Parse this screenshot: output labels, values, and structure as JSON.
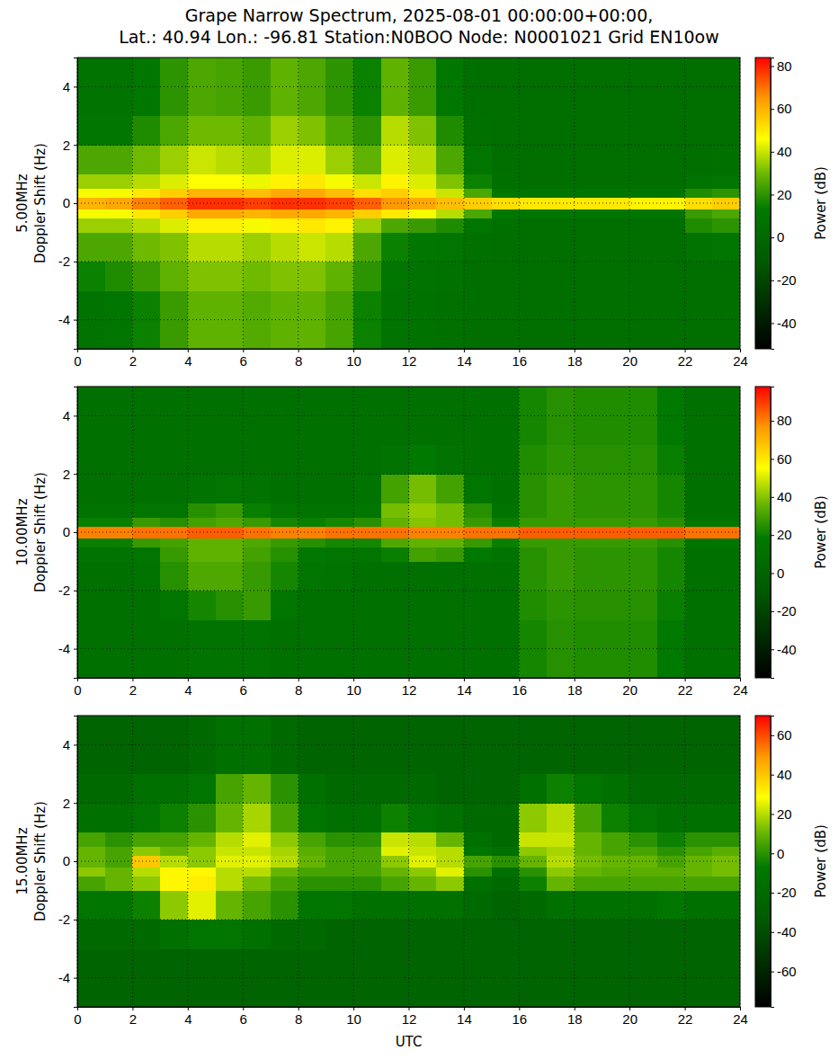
{
  "chart_data": [
    {
      "type": "heatmap",
      "title": "Grape Narrow Spectrum, 2025-08-01 00:00:00+00:00,\nLat.: 40.94 Lon.: -96.81 Station:N0BOO Node: N0001021 Grid EN10ow",
      "ylabel": "5.00MHz\nDoppler Shift (Hz)",
      "xlim": [
        0,
        24
      ],
      "xticks": [
        0,
        2,
        4,
        6,
        8,
        10,
        12,
        14,
        16,
        18,
        20,
        22,
        24
      ],
      "ylim": [
        -5,
        5
      ],
      "yticks": [
        -4,
        -2,
        0,
        2,
        4
      ],
      "grid": true,
      "x_edges": [
        0,
        1,
        2,
        3,
        4,
        5,
        6,
        7,
        8,
        9,
        10,
        11,
        12,
        13,
        14,
        15,
        16,
        17,
        18,
        19,
        20,
        21,
        22,
        23,
        24
      ],
      "y_edges": [
        -5,
        -3,
        -2,
        -1,
        -0.5,
        -0.2,
        0.2,
        0.5,
        1,
        2,
        3,
        5
      ],
      "cells": [
        [
          8,
          10,
          15,
          22,
          28,
          28,
          26,
          28,
          28,
          24,
          15,
          8,
          7,
          6,
          5,
          5,
          5,
          5,
          5,
          5,
          5,
          5,
          5,
          5
        ],
        [
          15,
          18,
          22,
          28,
          32,
          32,
          30,
          32,
          32,
          28,
          20,
          10,
          8,
          7,
          5,
          5,
          5,
          5,
          5,
          5,
          5,
          5,
          5,
          5
        ],
        [
          25,
          25,
          30,
          32,
          38,
          38,
          35,
          38,
          40,
          38,
          25,
          15,
          12,
          10,
          6,
          5,
          5,
          5,
          5,
          5,
          5,
          5,
          8,
          10
        ],
        [
          35,
          35,
          38,
          42,
          48,
          48,
          45,
          48,
          50,
          48,
          35,
          25,
          22,
          18,
          10,
          6,
          5,
          5,
          5,
          5,
          5,
          5,
          18,
          20
        ],
        [
          45,
          45,
          50,
          55,
          62,
          62,
          60,
          62,
          62,
          60,
          55,
          50,
          45,
          38,
          25,
          12,
          10,
          10,
          10,
          10,
          10,
          10,
          22,
          25
        ],
        [
          60,
          62,
          68,
          72,
          78,
          78,
          76,
          78,
          78,
          76,
          72,
          65,
          62,
          58,
          55,
          52,
          50,
          50,
          50,
          50,
          48,
          48,
          52,
          55
        ],
        [
          45,
          45,
          50,
          55,
          60,
          60,
          58,
          62,
          62,
          58,
          52,
          55,
          50,
          40,
          25,
          12,
          10,
          10,
          10,
          10,
          10,
          10,
          18,
          20
        ],
        [
          35,
          35,
          38,
          42,
          46,
          46,
          44,
          48,
          50,
          45,
          40,
          48,
          42,
          32,
          15,
          6,
          5,
          5,
          5,
          5,
          5,
          5,
          8,
          10
        ],
        [
          25,
          25,
          30,
          35,
          40,
          38,
          36,
          42,
          42,
          35,
          28,
          42,
          38,
          25,
          10,
          5,
          5,
          5,
          5,
          5,
          5,
          5,
          5,
          6
        ],
        [
          12,
          12,
          18,
          25,
          30,
          30,
          28,
          35,
          32,
          25,
          20,
          38,
          32,
          18,
          6,
          5,
          5,
          5,
          5,
          5,
          5,
          5,
          5,
          5
        ],
        [
          8,
          8,
          12,
          20,
          25,
          24,
          22,
          28,
          25,
          20,
          15,
          28,
          22,
          12,
          5,
          5,
          5,
          5,
          5,
          5,
          5,
          5,
          5,
          5
        ]
      ],
      "colorbar": {
        "label": "Power (dB)",
        "range": [
          -52,
          84
        ],
        "ticks": [
          -40,
          -20,
          0,
          20,
          40,
          60,
          80
        ]
      }
    },
    {
      "type": "heatmap",
      "ylabel": "10.00MHz\nDoppler Shift (Hz)",
      "xlim": [
        0,
        24
      ],
      "xticks": [
        0,
        2,
        4,
        6,
        8,
        10,
        12,
        14,
        16,
        18,
        20,
        22,
        24
      ],
      "ylim": [
        -5,
        5
      ],
      "yticks": [
        -4,
        -2,
        0,
        2,
        4
      ],
      "grid": true,
      "x_edges": [
        0,
        1,
        2,
        3,
        4,
        5,
        6,
        7,
        8,
        9,
        10,
        11,
        12,
        13,
        14,
        15,
        16,
        17,
        18,
        19,
        20,
        21,
        22,
        23,
        24
      ],
      "y_edges": [
        -5,
        -3,
        -2,
        -1,
        -0.5,
        -0.2,
        0.2,
        0.5,
        1,
        2,
        3,
        5
      ],
      "cells": [
        [
          10,
          10,
          10,
          10,
          12,
          12,
          12,
          10,
          10,
          10,
          10,
          10,
          10,
          10,
          10,
          10,
          22,
          25,
          24,
          24,
          24,
          18,
          10,
          10
        ],
        [
          10,
          10,
          10,
          15,
          22,
          25,
          28,
          15,
          10,
          10,
          10,
          10,
          10,
          10,
          10,
          10,
          24,
          26,
          25,
          25,
          25,
          20,
          10,
          10
        ],
        [
          10,
          10,
          12,
          25,
          32,
          32,
          28,
          22,
          15,
          12,
          10,
          10,
          10,
          10,
          10,
          10,
          25,
          28,
          26,
          26,
          26,
          22,
          10,
          10
        ],
        [
          12,
          12,
          15,
          28,
          35,
          35,
          30,
          25,
          18,
          15,
          15,
          20,
          30,
          28,
          18,
          12,
          25,
          28,
          26,
          26,
          26,
          22,
          10,
          10
        ],
        [
          20,
          20,
          28,
          30,
          35,
          35,
          32,
          28,
          25,
          22,
          22,
          32,
          35,
          35,
          28,
          20,
          28,
          28,
          28,
          28,
          28,
          25,
          15,
          15
        ],
        [
          80,
          80,
          82,
          82,
          85,
          85,
          82,
          80,
          80,
          82,
          82,
          82,
          80,
          80,
          82,
          82,
          85,
          85,
          85,
          85,
          85,
          85,
          82,
          82
        ],
        [
          20,
          20,
          28,
          25,
          30,
          32,
          28,
          22,
          20,
          22,
          25,
          35,
          40,
          38,
          28,
          20,
          28,
          28,
          28,
          28,
          28,
          25,
          15,
          15
        ],
        [
          12,
          12,
          15,
          15,
          25,
          28,
          20,
          15,
          12,
          12,
          15,
          38,
          42,
          38,
          25,
          12,
          25,
          28,
          26,
          26,
          26,
          22,
          10,
          10
        ],
        [
          10,
          10,
          10,
          10,
          12,
          15,
          12,
          10,
          10,
          10,
          12,
          30,
          38,
          30,
          15,
          10,
          25,
          28,
          26,
          26,
          26,
          22,
          10,
          10
        ],
        [
          10,
          10,
          10,
          10,
          10,
          10,
          10,
          10,
          10,
          10,
          10,
          12,
          18,
          12,
          10,
          10,
          24,
          26,
          25,
          25,
          25,
          20,
          10,
          10
        ],
        [
          10,
          10,
          10,
          10,
          10,
          10,
          10,
          10,
          10,
          10,
          10,
          10,
          10,
          10,
          10,
          10,
          22,
          25,
          24,
          24,
          24,
          18,
          10,
          10
        ]
      ],
      "colorbar": {
        "label": "Power (dB)",
        "range": [
          -55,
          98
        ],
        "ticks": [
          -40,
          -20,
          0,
          20,
          40,
          60,
          80
        ]
      }
    },
    {
      "type": "heatmap",
      "ylabel": "15.00MHz\nDoppler Shift (Hz)",
      "xlabel": "UTC",
      "xlim": [
        0,
        24
      ],
      "xticks": [
        0,
        2,
        4,
        6,
        8,
        10,
        12,
        14,
        16,
        18,
        20,
        22,
        24
      ],
      "ylim": [
        -5,
        5
      ],
      "yticks": [
        -4,
        -2,
        0,
        2,
        4
      ],
      "grid": true,
      "x_edges": [
        0,
        1,
        2,
        3,
        4,
        5,
        6,
        7,
        8,
        9,
        10,
        11,
        12,
        13,
        14,
        15,
        16,
        17,
        18,
        19,
        20,
        21,
        22,
        23,
        24
      ],
      "y_edges": [
        -5,
        -3,
        -2,
        -1,
        -0.5,
        -0.2,
        0.2,
        0.5,
        1,
        2,
        3,
        5
      ],
      "cells": [
        [
          -25,
          -25,
          -25,
          -25,
          -25,
          -25,
          -25,
          -25,
          -25,
          -25,
          -25,
          -25,
          -25,
          -25,
          -25,
          -25,
          -25,
          -25,
          -25,
          -25,
          -25,
          -25,
          -25,
          -25
        ],
        [
          -20,
          -20,
          -20,
          -15,
          -10,
          -10,
          -15,
          -20,
          -20,
          -25,
          -25,
          -25,
          -25,
          -25,
          -25,
          -25,
          -25,
          -25,
          -25,
          -25,
          -25,
          -25,
          -25,
          -25
        ],
        [
          -10,
          -10,
          -5,
          15,
          25,
          10,
          5,
          0,
          -10,
          -10,
          -15,
          -15,
          -15,
          -15,
          -20,
          -25,
          -20,
          -15,
          -15,
          -15,
          -15,
          -10,
          -15,
          -15
        ],
        [
          5,
          10,
          15,
          30,
          32,
          20,
          12,
          5,
          0,
          0,
          0,
          5,
          10,
          15,
          -15,
          -20,
          -5,
          10,
          5,
          5,
          5,
          5,
          5,
          5
        ],
        [
          15,
          10,
          20,
          30,
          30,
          20,
          20,
          10,
          5,
          5,
          5,
          10,
          15,
          25,
          0,
          -15,
          0,
          15,
          10,
          8,
          8,
          8,
          10,
          12
        ],
        [
          10,
          5,
          40,
          20,
          15,
          25,
          25,
          20,
          10,
          5,
          5,
          15,
          25,
          20,
          5,
          0,
          10,
          20,
          12,
          10,
          10,
          5,
          10,
          12
        ],
        [
          10,
          5,
          15,
          10,
          15,
          22,
          22,
          18,
          8,
          5,
          5,
          25,
          22,
          20,
          -10,
          -15,
          15,
          18,
          10,
          5,
          5,
          0,
          5,
          8
        ],
        [
          5,
          0,
          5,
          5,
          10,
          20,
          25,
          15,
          5,
          0,
          0,
          22,
          20,
          10,
          -15,
          -20,
          22,
          22,
          10,
          5,
          0,
          -5,
          0,
          0
        ],
        [
          -15,
          -15,
          -10,
          -5,
          0,
          10,
          18,
          5,
          -10,
          -15,
          -15,
          -5,
          -10,
          -15,
          -20,
          -20,
          15,
          20,
          5,
          -5,
          -10,
          -15,
          -15,
          -15
        ],
        [
          -20,
          -20,
          -15,
          -15,
          -10,
          5,
          10,
          0,
          -15,
          -20,
          -20,
          -20,
          -20,
          -25,
          -25,
          -25,
          -15,
          -5,
          -10,
          -15,
          -20,
          -20,
          -20,
          -20
        ],
        [
          -25,
          -25,
          -25,
          -25,
          -20,
          -15,
          -15,
          -20,
          -25,
          -25,
          -25,
          -25,
          -25,
          -25,
          -25,
          -25,
          -25,
          -25,
          -25,
          -25,
          -25,
          -25,
          -25,
          -25
        ]
      ],
      "colorbar": {
        "label": "Power (dB)",
        "range": [
          -78,
          70
        ],
        "ticks": [
          -60,
          -40,
          -20,
          0,
          20,
          40,
          60
        ]
      }
    }
  ]
}
